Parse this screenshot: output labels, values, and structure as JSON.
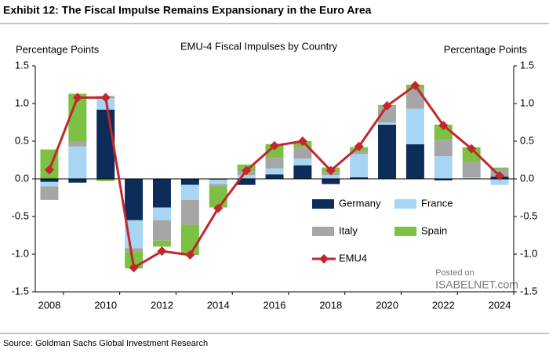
{
  "chart_data": {
    "type": "bar",
    "stacked": true,
    "title": "Exhibit 12: The Fiscal Impulse Remains Expansionary in the Euro Area",
    "subtitle": "EMU-4 Fiscal Impulses by Country",
    "y_label": "Percentage Points",
    "y2_label": "Percentage Points",
    "source": "Source: Goldman Sachs Global Investment Research",
    "watermark": {
      "line1": "Posted on",
      "line2": "ISABELNET.com"
    },
    "categories": [
      "2008",
      null,
      "2010",
      null,
      "2012",
      null,
      "2014",
      null,
      "2016",
      null,
      "2018",
      null,
      "2020",
      null,
      "2022",
      null,
      "2024"
    ],
    "series": [
      {
        "name": "Germany",
        "color": "#0c2c59",
        "values": [
          -0.04,
          -0.05,
          0.92,
          -0.55,
          -0.38,
          -0.08,
          -0.01,
          -0.08,
          0.06,
          0.18,
          -0.07,
          0.02,
          0.72,
          0.46,
          -0.02,
          0.0,
          0.03
        ]
      },
      {
        "name": "France",
        "color": "#a7d5f3",
        "values": [
          -0.06,
          0.43,
          0.15,
          -0.37,
          -0.17,
          -0.2,
          -0.06,
          0.05,
          0.08,
          0.09,
          0.05,
          0.31,
          0.03,
          0.47,
          0.3,
          0.02,
          -0.08
        ]
      },
      {
        "name": "Italy",
        "color": "#a6a6a6",
        "values": [
          -0.18,
          0.07,
          0.03,
          -0.05,
          -0.27,
          -0.33,
          -0.03,
          0.05,
          0.14,
          0.15,
          0.04,
          0.04,
          0.21,
          0.26,
          0.22,
          0.2,
          0.1
        ]
      },
      {
        "name": "Spain",
        "color": "#7cc142",
        "values": [
          0.39,
          0.63,
          -0.03,
          -0.22,
          -0.08,
          -0.4,
          -0.28,
          0.09,
          0.18,
          0.08,
          0.06,
          0.05,
          0.02,
          0.06,
          0.2,
          0.2,
          0.02
        ]
      },
      {
        "name": "EMU4",
        "type": "line",
        "color": "#c1272d",
        "values": [
          0.12,
          1.08,
          1.08,
          -1.18,
          -0.96,
          -1.01,
          -0.39,
          0.11,
          0.44,
          0.5,
          0.11,
          0.43,
          0.97,
          1.24,
          0.71,
          0.4,
          0.04
        ]
      }
    ],
    "ylim": [
      -1.5,
      1.5
    ],
    "yticks": [
      {
        "value": -1.5,
        "label": "-1.5"
      },
      {
        "value": -1,
        "label": "-1.0"
      },
      {
        "value": -0.5,
        "label": "-0.5"
      },
      {
        "value": 0,
        "label": "0.0"
      },
      {
        "value": 0.5,
        "label": "0.5"
      },
      {
        "value": 1,
        "label": "1.0"
      },
      {
        "value": 1.5,
        "label": "1.5"
      }
    ],
    "y2lim": [
      -1.5,
      1.5
    ],
    "y2ticks": [
      {
        "value": -1.5,
        "label": "-1.5"
      },
      {
        "value": -1,
        "label": "-1.0"
      },
      {
        "value": -0.5,
        "label": "-0.5"
      },
      {
        "value": 0,
        "label": "0.0"
      },
      {
        "value": 0.5,
        "label": "0.5"
      },
      {
        "value": 1,
        "label": "1.0"
      },
      {
        "value": 1.5,
        "label": "1.5"
      }
    ],
    "grid": false
  }
}
